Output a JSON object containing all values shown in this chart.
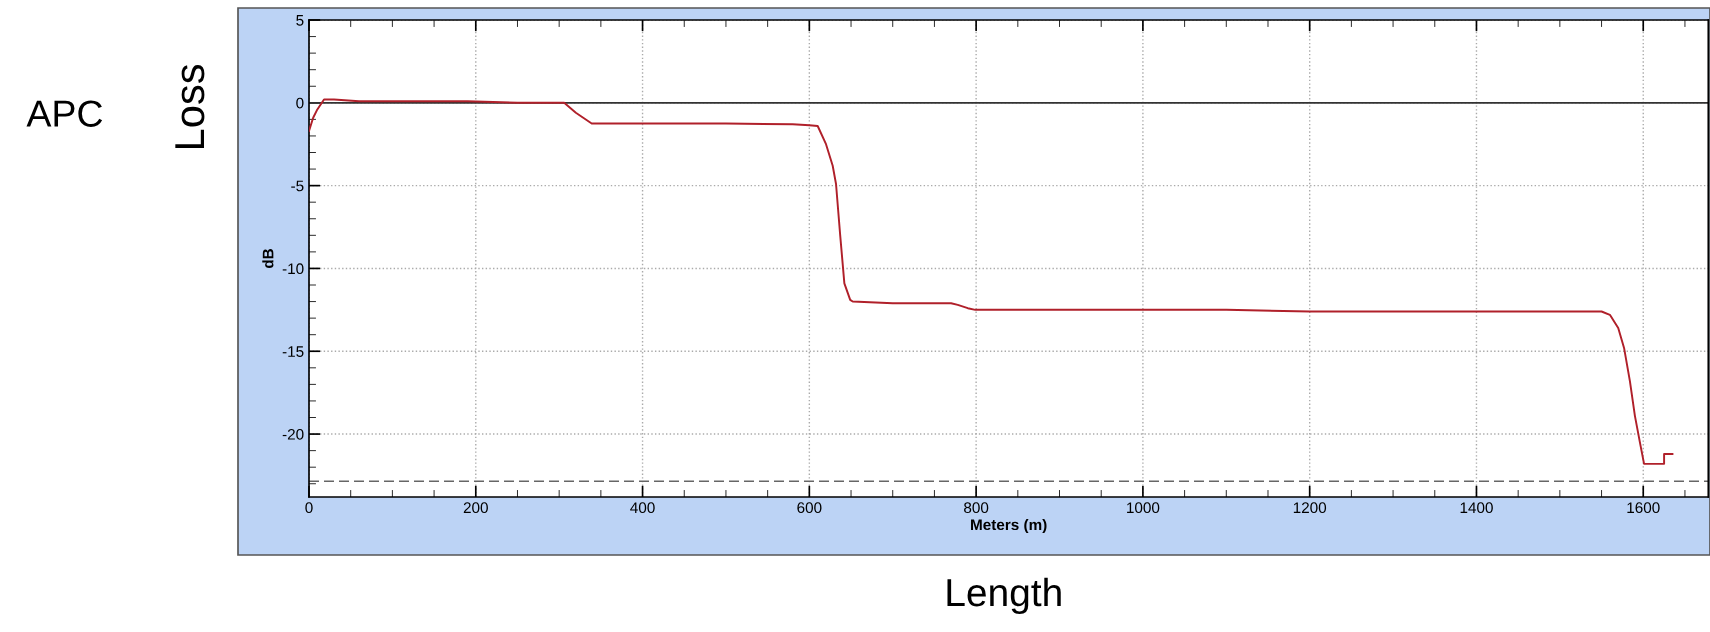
{
  "chart_data": {
    "type": "line",
    "xlabel": "Meters (m)",
    "ylabel": "dB",
    "annotations": [
      "APC",
      "Loss",
      "Length"
    ],
    "x": [
      0,
      5,
      10,
      18,
      30,
      60,
      100,
      150,
      190,
      250,
      306,
      320,
      339,
      400,
      500,
      580,
      600,
      610,
      620,
      628,
      632,
      637,
      642,
      649,
      652,
      700,
      770,
      778,
      790,
      799,
      900,
      1000,
      1100,
      1200,
      1300,
      1400,
      1500,
      1550,
      1560,
      1570,
      1577,
      1584,
      1590,
      1596,
      1601,
      1625,
      1625,
      1635
    ],
    "series": [
      {
        "color": "#b0202a",
        "values": [
          -1.7,
          -0.9,
          -0.4,
          0.2,
          0.2,
          0.1,
          0.1,
          0.1,
          0.1,
          0.0,
          0.0,
          -0.6,
          -1.25,
          -1.25,
          -1.25,
          -1.3,
          -1.35,
          -1.4,
          -2.5,
          -3.8,
          -4.9,
          -8.0,
          -10.9,
          -11.9,
          -12.0,
          -12.1,
          -12.1,
          -12.2,
          -12.4,
          -12.5,
          -12.5,
          -12.5,
          -12.5,
          -12.6,
          -12.6,
          -12.6,
          -12.6,
          -12.6,
          -12.8,
          -13.6,
          -14.8,
          -16.8,
          -18.9,
          -20.5,
          -21.8,
          -21.8,
          -21.2,
          -21.2
        ]
      }
    ],
    "xlim": [
      0,
      1678
    ],
    "ylim": [
      -23.8,
      5
    ],
    "xticks": [
      0,
      200,
      400,
      600,
      800,
      1000,
      1200,
      1400,
      1600
    ],
    "yticks": [
      5,
      0,
      -5,
      -10,
      -15,
      -20
    ],
    "ref_lines": [
      {
        "axis": "y",
        "value": 0,
        "color": "#333333",
        "line_style": "solid"
      },
      {
        "axis": "y",
        "value": -22.85,
        "color": "#666666",
        "line_style": "dashed"
      }
    ],
    "grid": true,
    "marker": "none",
    "line_style": "solid",
    "legend": false
  }
}
